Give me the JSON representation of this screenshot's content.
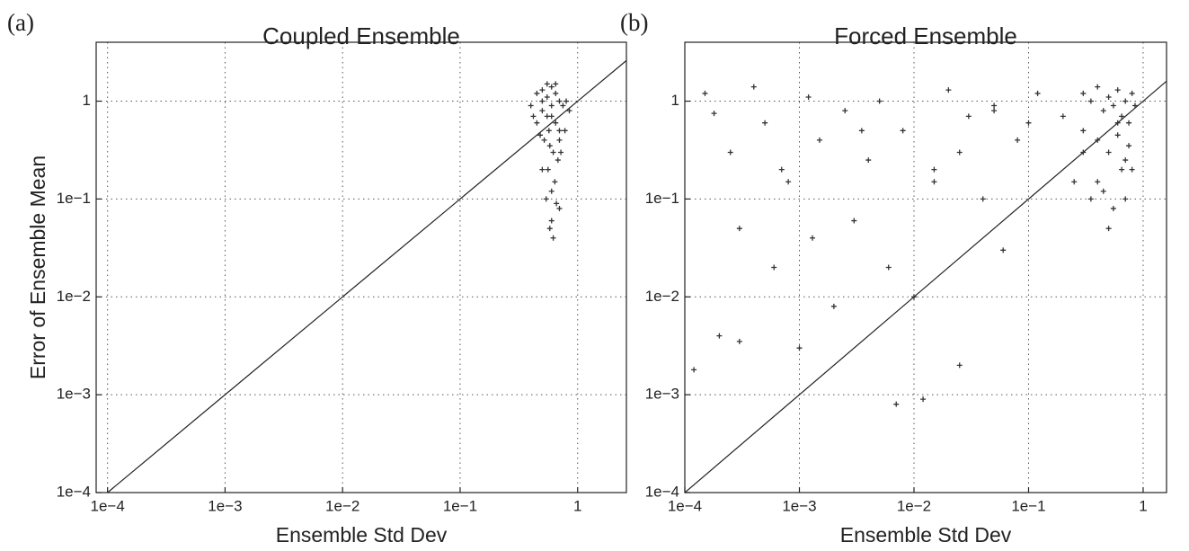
{
  "chart_data": [
    {
      "type": "scatter",
      "panel_label": "(a)",
      "title": "Coupled Ensemble",
      "xlabel": "Ensemble Std Dev",
      "ylabel": "Error of Ensemble Mean",
      "log_x": true,
      "log_y": true,
      "grid": true,
      "identity_line": true,
      "color": "#333333",
      "xlim": [
        8e-05,
        2.6
      ],
      "ylim": [
        0.0001,
        4
      ],
      "xticks": [
        {
          "value": 0.0001,
          "label": "1e−4"
        },
        {
          "value": 0.001,
          "label": "1e−3"
        },
        {
          "value": 0.01,
          "label": "1e−2"
        },
        {
          "value": 0.1,
          "label": "1e−1"
        },
        1
      ],
      "yticks": [
        {
          "value": 0.0001,
          "label": "1e−4"
        },
        {
          "value": 0.001,
          "label": "1e−3"
        },
        {
          "value": 0.01,
          "label": "1e−2"
        },
        {
          "value": 0.1,
          "label": "1e−1"
        },
        1
      ],
      "x": [
        0.45,
        0.5,
        0.55,
        0.6,
        0.65,
        0.7,
        0.75,
        0.5,
        0.55,
        0.6,
        0.65,
        0.7,
        0.4,
        0.45,
        0.8,
        0.85,
        0.52,
        0.58,
        0.62,
        0.68,
        0.48,
        0.72,
        0.56,
        0.64,
        0.6,
        0.54,
        0.66,
        0.5,
        0.6,
        0.7,
        0.42,
        0.78,
        0.58,
        0.62,
        0.55,
        0.65,
        0.57,
        0.6,
        0.5,
        0.7
      ],
      "values": [
        1.2,
        1.3,
        1.1,
        1.4,
        1.2,
        1.0,
        0.9,
        0.8,
        0.7,
        0.9,
        0.6,
        0.5,
        0.9,
        0.6,
        1.0,
        0.8,
        0.4,
        0.35,
        0.3,
        0.25,
        0.45,
        0.3,
        0.2,
        0.15,
        0.12,
        0.1,
        0.09,
        0.2,
        0.06,
        0.08,
        0.7,
        0.5,
        0.05,
        0.04,
        1.5,
        1.5,
        0.5,
        0.7,
        1.0,
        0.4
      ]
    },
    {
      "type": "scatter",
      "panel_label": "(b)",
      "title": "Forced Ensemble",
      "xlabel": "Ensemble Std Dev",
      "log_x": true,
      "log_y": true,
      "grid": true,
      "identity_line": true,
      "color": "#333333",
      "xlim": [
        0.0001,
        1.6
      ],
      "ylim": [
        0.0001,
        4
      ],
      "xticks": [
        {
          "value": 0.0001,
          "label": "1e−4"
        },
        {
          "value": 0.001,
          "label": "1e−3"
        },
        {
          "value": 0.01,
          "label": "1e−2"
        },
        {
          "value": 0.1,
          "label": "1e−1"
        },
        1
      ],
      "yticks": [
        {
          "value": 0.0001,
          "label": "1e−4"
        },
        {
          "value": 0.001,
          "label": "1e−3"
        },
        {
          "value": 0.01,
          "label": "1e−2"
        },
        {
          "value": 0.1,
          "label": "1e−1"
        },
        1
      ],
      "x": [
        0.3,
        0.35,
        0.4,
        0.45,
        0.5,
        0.55,
        0.6,
        0.65,
        0.7,
        0.75,
        0.8,
        0.85,
        0.3,
        0.4,
        0.5,
        0.6,
        0.7,
        0.8,
        0.25,
        0.35,
        0.45,
        0.55,
        0.65,
        0.75,
        0.2,
        0.5,
        0.6,
        0.4,
        0.7,
        0.3,
        0.00015,
        0.00018,
        0.0002,
        0.00025,
        0.0003,
        0.0004,
        0.0005,
        0.0006,
        0.0008,
        0.001,
        0.0012,
        0.0015,
        0.002,
        0.0025,
        0.003,
        0.004,
        0.005,
        0.006,
        0.008,
        0.01,
        0.012,
        0.015,
        0.02,
        0.025,
        0.03,
        0.04,
        0.05,
        0.06,
        0.08,
        0.1,
        0.00012,
        0.0003,
        0.0007,
        0.0013,
        0.0035,
        0.007,
        0.015,
        0.025,
        0.05,
        0.12
      ],
      "values": [
        1.2,
        1.0,
        1.4,
        0.8,
        1.1,
        0.9,
        1.3,
        0.7,
        1.0,
        0.6,
        1.2,
        0.9,
        0.5,
        0.4,
        0.3,
        0.6,
        0.25,
        0.2,
        0.15,
        0.1,
        0.12,
        0.08,
        0.2,
        0.35,
        0.7,
        0.05,
        0.45,
        0.15,
        0.1,
        0.3,
        1.2,
        0.75,
        0.004,
        0.3,
        0.05,
        1.4,
        0.6,
        0.02,
        0.15,
        0.003,
        1.1,
        0.4,
        0.008,
        0.8,
        0.06,
        0.25,
        1.0,
        0.02,
        0.5,
        0.01,
        0.0009,
        0.2,
        1.3,
        0.002,
        0.7,
        0.1,
        0.9,
        0.03,
        0.4,
        0.6,
        0.0018,
        0.0035,
        0.2,
        0.04,
        0.5,
        0.0008,
        0.15,
        0.3,
        0.8,
        1.2
      ]
    }
  ]
}
